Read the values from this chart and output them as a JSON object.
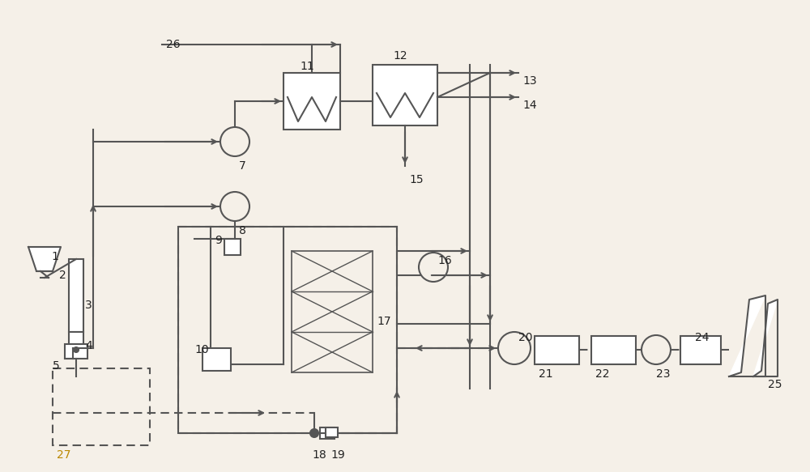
{
  "bg_color": "#f5f0e8",
  "line_color": "#555555",
  "line_width": 1.5,
  "dash_line_color": "#555555",
  "title": "",
  "figsize": [
    10.0,
    5.83
  ],
  "dpi": 100
}
